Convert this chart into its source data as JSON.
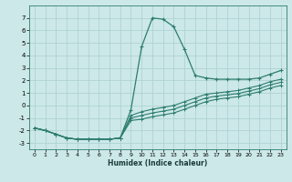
{
  "xlabel": "Humidex (Indice chaleur)",
  "background_color": "#cce8e8",
  "grid_color": "#aacfcf",
  "line_color": "#2e7d6e",
  "xlim": [
    -0.5,
    23.5
  ],
  "ylim": [
    -3.5,
    8.0
  ],
  "xticks": [
    0,
    1,
    2,
    3,
    4,
    5,
    6,
    7,
    8,
    9,
    10,
    11,
    12,
    13,
    14,
    15,
    16,
    17,
    18,
    19,
    20,
    21,
    22,
    23
  ],
  "yticks": [
    -3,
    -2,
    -1,
    0,
    1,
    2,
    3,
    4,
    5,
    6,
    7
  ],
  "line1_x": [
    0,
    1,
    2,
    3,
    4,
    5,
    6,
    7,
    8,
    9,
    10,
    11,
    12,
    13,
    14,
    15,
    16,
    17,
    18,
    19,
    20,
    21,
    22,
    23
  ],
  "line1_y": [
    -1.8,
    -2.0,
    -2.3,
    -2.6,
    -2.7,
    -2.7,
    -2.7,
    -2.7,
    -2.6,
    -0.35,
    4.7,
    7.0,
    6.9,
    6.3,
    4.5,
    2.4,
    2.2,
    2.1,
    2.1,
    2.1,
    2.1,
    2.2,
    2.5,
    2.8
  ],
  "line2_x": [
    0,
    1,
    2,
    3,
    4,
    5,
    6,
    7,
    8,
    9,
    10,
    11,
    12,
    13,
    14,
    15,
    16,
    17,
    18,
    19,
    20,
    21,
    22,
    23
  ],
  "line2_y": [
    -1.8,
    -2.0,
    -2.3,
    -2.6,
    -2.7,
    -2.7,
    -2.7,
    -2.7,
    -2.6,
    -0.8,
    -0.5,
    -0.3,
    -0.15,
    0.0,
    0.3,
    0.6,
    0.9,
    1.0,
    1.1,
    1.2,
    1.4,
    1.6,
    1.9,
    2.1
  ],
  "line3_x": [
    0,
    1,
    2,
    3,
    4,
    5,
    6,
    7,
    8,
    9,
    10,
    11,
    12,
    13,
    14,
    15,
    16,
    17,
    18,
    19,
    20,
    21,
    22,
    23
  ],
  "line3_y": [
    -1.8,
    -2.0,
    -2.3,
    -2.6,
    -2.7,
    -2.7,
    -2.7,
    -2.7,
    -2.6,
    -1.0,
    -0.8,
    -0.6,
    -0.45,
    -0.3,
    -0.0,
    0.3,
    0.6,
    0.75,
    0.85,
    0.95,
    1.15,
    1.35,
    1.65,
    1.85
  ],
  "line4_x": [
    0,
    1,
    2,
    3,
    4,
    5,
    6,
    7,
    8,
    9,
    10,
    11,
    12,
    13,
    14,
    15,
    16,
    17,
    18,
    19,
    20,
    21,
    22,
    23
  ],
  "line4_y": [
    -1.8,
    -2.0,
    -2.3,
    -2.6,
    -2.7,
    -2.7,
    -2.7,
    -2.7,
    -2.6,
    -1.2,
    -1.1,
    -0.9,
    -0.75,
    -0.6,
    -0.3,
    0.0,
    0.3,
    0.5,
    0.6,
    0.7,
    0.9,
    1.1,
    1.4,
    1.6
  ]
}
